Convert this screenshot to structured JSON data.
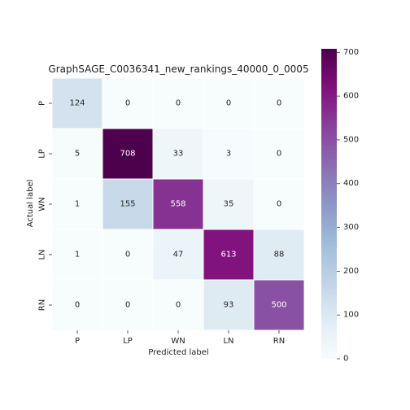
{
  "chart_data": {
    "type": "heatmap",
    "title": "GraphSAGE_C0036341_new_rankings_40000_0_0005",
    "xlabel": "Predicted label",
    "ylabel": "Actual label",
    "x_categories": [
      "P",
      "LP",
      "WN",
      "LN",
      "RN"
    ],
    "y_categories": [
      "P",
      "LP",
      "WN",
      "LN",
      "RN"
    ],
    "values": [
      [
        124,
        0,
        0,
        0,
        0
      ],
      [
        5,
        708,
        33,
        3,
        0
      ],
      [
        1,
        155,
        558,
        35,
        0
      ],
      [
        1,
        0,
        47,
        613,
        88
      ],
      [
        0,
        0,
        0,
        93,
        500
      ]
    ],
    "colorbar": {
      "min": 0,
      "max": 708,
      "ticks": [
        0,
        100,
        200,
        300,
        400,
        500,
        600,
        700
      ],
      "colormap": "BuPu"
    },
    "grid": true
  }
}
